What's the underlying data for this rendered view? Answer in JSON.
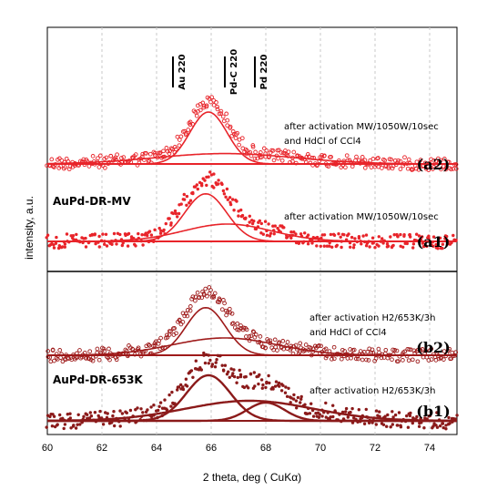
{
  "chart_data": {
    "type": "scatter",
    "title": "",
    "xlabel": "2 theta, deg ( CuKα)",
    "ylabel": "intensity, a.u.",
    "xlim": [
      60,
      75
    ],
    "x_ticks": [
      "60",
      "62",
      "64",
      "66",
      "68",
      "70",
      "72",
      "74"
    ],
    "grid": "vertical-dashed",
    "reference_lines": [
      {
        "label": "Au 220",
        "x": 64.6
      },
      {
        "label": "Pd-C 220",
        "x": 66.5
      },
      {
        "label": "Pd 220",
        "x": 67.6
      }
    ],
    "panels": [
      {
        "tag": "(a2)",
        "sample": "",
        "condition": [
          "after activation MW/1050W/10sec",
          "and HdCl of CCl4"
        ],
        "marker": "open-circle",
        "color": "#e8242a",
        "peaks": [
          {
            "center": 65.9,
            "height": 0.6,
            "fwhm": 1.6
          },
          {
            "center": 66.5,
            "height": 0.12,
            "fwhm": 6.0
          }
        ]
      },
      {
        "tag": "(a1)",
        "sample": "AuPd-DR-MV",
        "condition": [
          "after activation MW/1050W/10sec"
        ],
        "marker": "filled-circle",
        "color": "#e8242a",
        "peaks": [
          {
            "center": 65.8,
            "height": 0.55,
            "fwhm": 1.8
          },
          {
            "center": 66.6,
            "height": 0.2,
            "fwhm": 3.8
          }
        ]
      },
      {
        "tag": "(b2)",
        "sample": "",
        "condition": [
          "after activation H2/653K/3h",
          "and HdCl of CCl4"
        ],
        "marker": "open-circle",
        "color": "#9e1a1a",
        "peaks": [
          {
            "center": 65.8,
            "height": 0.55,
            "fwhm": 1.7
          },
          {
            "center": 66.5,
            "height": 0.2,
            "fwhm": 4.5
          }
        ]
      },
      {
        "tag": "(b1)",
        "sample": "AuPd-DR-653K",
        "condition": [
          "after activation H2/653K/3h"
        ],
        "marker": "filled-circle",
        "color": "#8b1a1a",
        "peaks": [
          {
            "center": 65.9,
            "height": 0.5,
            "fwhm": 1.9
          },
          {
            "center": 68.0,
            "height": 0.2,
            "fwhm": 1.6
          },
          {
            "center": 67.4,
            "height": 0.22,
            "fwhm": 5.5
          }
        ]
      }
    ]
  }
}
